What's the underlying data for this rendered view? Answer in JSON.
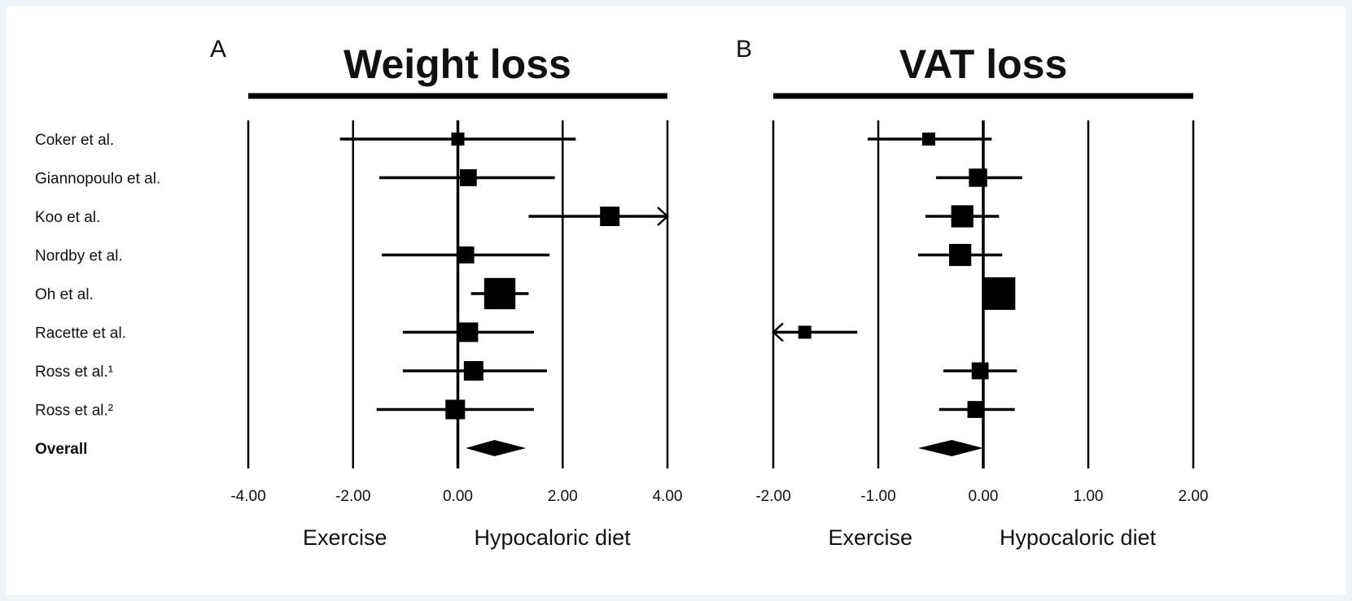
{
  "chart_data": [
    {
      "type": "forest",
      "panel_letter": "A",
      "title": "Weight loss",
      "xlim": [
        -4,
        4
      ],
      "xticks": [
        "-4.00",
        "-2.00",
        "0.00",
        "2.00",
        "4.00"
      ],
      "xtick_values": [
        -4,
        -2,
        0,
        2,
        4
      ],
      "direction_labels": {
        "left": "Exercise",
        "right": "Hypocaloric diet"
      },
      "studies": [
        {
          "label": "Coker et al.",
          "estimate": 0.0,
          "ci_low": -2.25,
          "ci_high": 2.25,
          "weight": 1.0
        },
        {
          "label": "Giannopoulo et al.",
          "estimate": 0.2,
          "ci_low": -1.5,
          "ci_high": 1.85,
          "weight": 1.3
        },
        {
          "label": "Koo et al.",
          "estimate": 2.9,
          "ci_low": 1.35,
          "ci_high": 4.0,
          "weight": 1.5,
          "arrow_right": true
        },
        {
          "label": "Nordby et al.",
          "estimate": 0.15,
          "ci_low": -1.45,
          "ci_high": 1.75,
          "weight": 1.3
        },
        {
          "label": "Oh et al.",
          "estimate": 0.8,
          "ci_low": 0.25,
          "ci_high": 1.35,
          "weight": 2.4
        },
        {
          "label": "Racette et al.",
          "estimate": 0.2,
          "ci_low": -1.05,
          "ci_high": 1.45,
          "weight": 1.5
        },
        {
          "label": "Ross et al.¹",
          "estimate": 0.3,
          "ci_low": -1.05,
          "ci_high": 1.7,
          "weight": 1.5
        },
        {
          "label": "Ross et al.²",
          "estimate": -0.05,
          "ci_low": -1.55,
          "ci_high": 1.45,
          "weight": 1.5
        }
      ],
      "overall": {
        "label": "Overall",
        "estimate": 0.7,
        "ci_low": 0.15,
        "ci_high": 1.3
      }
    },
    {
      "type": "forest",
      "panel_letter": "B",
      "title": "VAT loss",
      "xlim": [
        -2,
        2
      ],
      "xticks": [
        "-2.00",
        "-1.00",
        "0.00",
        "1.00",
        "2.00"
      ],
      "xtick_values": [
        -2,
        -1,
        0,
        1,
        2
      ],
      "direction_labels": {
        "left": "Exercise",
        "right": "Hypocaloric diet"
      },
      "studies": [
        {
          "label": "Coker et al.",
          "estimate": -0.52,
          "ci_low": -1.1,
          "ci_high": 0.08,
          "weight": 1.0
        },
        {
          "label": "Giannopoulo et al.",
          "estimate": -0.05,
          "ci_low": -0.45,
          "ci_high": 0.37,
          "weight": 1.4
        },
        {
          "label": "Koo et al.",
          "estimate": -0.2,
          "ci_low": -0.55,
          "ci_high": 0.15,
          "weight": 1.7
        },
        {
          "label": "Nordby et al.",
          "estimate": -0.22,
          "ci_low": -0.62,
          "ci_high": 0.18,
          "weight": 1.7
        },
        {
          "label": "Oh et al.",
          "estimate": 0.15,
          "ci_low": 0.0,
          "ci_high": 0.3,
          "weight": 2.5
        },
        {
          "label": "Racette et al.",
          "estimate": -1.7,
          "ci_low": -2.0,
          "ci_high": -1.2,
          "weight": 1.0,
          "arrow_left": true
        },
        {
          "label": "Ross et al.¹",
          "estimate": -0.03,
          "ci_low": -0.38,
          "ci_high": 0.32,
          "weight": 1.3
        },
        {
          "label": "Ross et al.²",
          "estimate": -0.07,
          "ci_low": -0.42,
          "ci_high": 0.3,
          "weight": 1.3
        }
      ],
      "overall": {
        "label": "Overall",
        "estimate": -0.3,
        "ci_low": -0.62,
        "ci_high": 0.0
      }
    }
  ]
}
